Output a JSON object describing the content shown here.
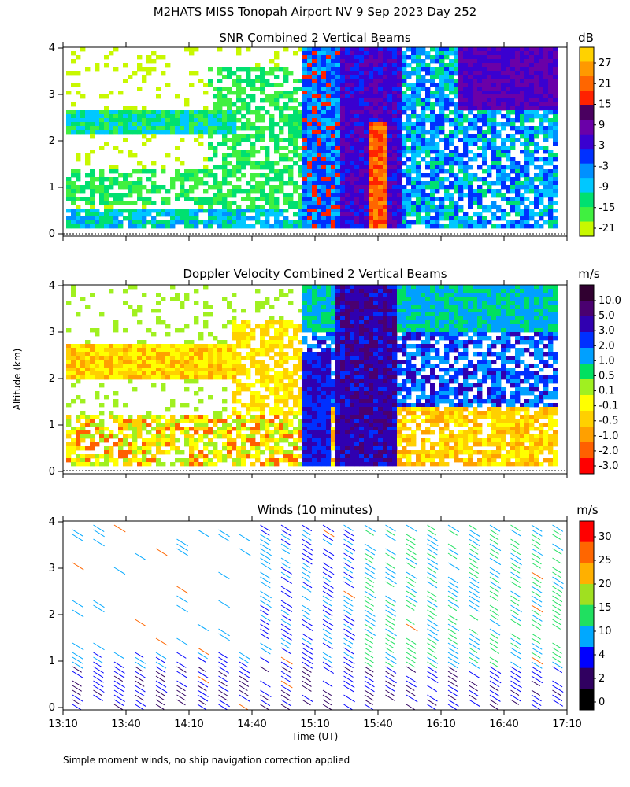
{
  "figure": {
    "title": "M2HATS MISS Tonopah Airport NV   9 Sep 2023 Day 252",
    "ylabel": "Altitude (km)",
    "xlabel": "Time (UT)",
    "footnote": "Simple moment winds, no ship navigation correction applied",
    "time_ticks": [
      "13:10",
      "13:40",
      "14:10",
      "14:40",
      "15:10",
      "15:40",
      "16:10",
      "16:40",
      "17:10"
    ],
    "altitude_ticks": [
      "0",
      "1",
      "2",
      "3",
      "4"
    ]
  },
  "chart_data": [
    {
      "type": "heatmap",
      "title": "SNR Combined 2 Vertical Beams",
      "unit": "dB",
      "xlim": [
        "13:10",
        "17:10"
      ],
      "ylim": [
        0,
        4
      ],
      "colorbar": {
        "labels": [
          "27",
          "21",
          "15",
          "9",
          "3",
          "-3",
          "-9",
          "-15",
          "-21"
        ],
        "colors": [
          "#ffd200",
          "#ff9900",
          "#ff6600",
          "#ff2200",
          "#4a0060",
          "#6a00a8",
          "#3a00d0",
          "#0030ff",
          "#0090ff",
          "#00c8ff",
          "#00e070",
          "#40f040",
          "#c8f800"
        ]
      },
      "description_levels": {
        "white": "no data",
        "low": -21,
        "high": 27
      }
    },
    {
      "type": "heatmap",
      "title": "Doppler Velocity Combined 2 Vertical Beams",
      "unit": "m/s",
      "xlim": [
        "13:10",
        "17:10"
      ],
      "ylim": [
        0,
        4
      ],
      "colorbar": {
        "labels": [
          "10.0",
          "5.0",
          "3.0",
          "2.0",
          "1.0",
          "0.5",
          "0.1",
          "-0.1",
          "-0.5",
          "-1.0",
          "-2.0",
          "-3.0"
        ],
        "colors": [
          "#300030",
          "#4a0070",
          "#3000b0",
          "#0030ff",
          "#00a0ff",
          "#00e060",
          "#a0f020",
          "#ffff00",
          "#ffd000",
          "#ffa000",
          "#ff6000",
          "#ff0000"
        ]
      }
    },
    {
      "type": "scatter",
      "title": "Winds (10 minutes)",
      "unit": "m/s",
      "xlim": [
        "13:10",
        "17:10"
      ],
      "ylim": [
        0,
        4
      ],
      "colorbar": {
        "labels": [
          "30",
          "25",
          "20",
          "15",
          "10",
          "4",
          "2",
          "0"
        ],
        "colors": [
          "#ff0000",
          "#ff6600",
          "#ffb000",
          "#a0e020",
          "#20e060",
          "#00a8ff",
          "#0000ff",
          "#300060",
          "#000000"
        ]
      }
    }
  ]
}
